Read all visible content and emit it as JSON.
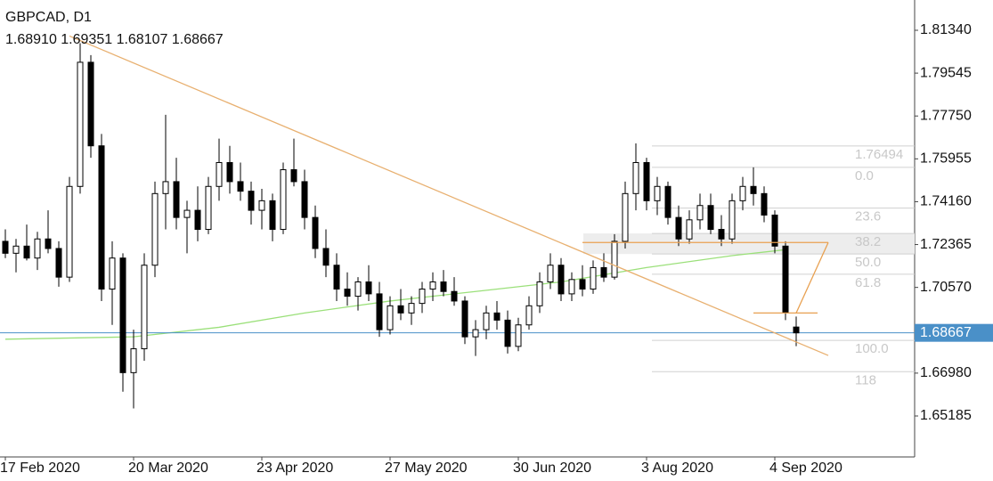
{
  "chart_data": {
    "type": "candlestick",
    "title": "GBPCAD, D1",
    "subtitle": "1.68910 1.69351 1.68107 1.68667",
    "ylim": [
      1.63469,
      1.82608
    ],
    "yticks": [
      {
        "value": 1.8134,
        "label": "1.81340"
      },
      {
        "value": 1.79545,
        "label": "1.79545"
      },
      {
        "value": 1.7775,
        "label": "1.77750"
      },
      {
        "value": 1.75955,
        "label": "1.75955"
      },
      {
        "value": 1.7416,
        "label": "1.74160"
      },
      {
        "value": 1.72365,
        "label": "1.72365"
      },
      {
        "value": 1.7057,
        "label": "1.70570"
      },
      {
        "value": 1.6698,
        "label": "1.66980"
      },
      {
        "value": 1.65185,
        "label": "1.65185"
      }
    ],
    "current_price": {
      "value": 1.68667,
      "label": "1.68667",
      "color": "#4a90c8"
    },
    "categories": [
      "17 Feb 2020",
      null,
      null,
      null,
      null,
      null,
      null,
      null,
      null,
      null,
      null,
      null,
      "20 Mar 2020",
      null,
      null,
      null,
      null,
      null,
      null,
      null,
      null,
      null,
      null,
      null,
      "23 Apr 2020",
      null,
      null,
      null,
      null,
      null,
      null,
      null,
      null,
      null,
      null,
      null,
      "27 May 2020",
      null,
      null,
      null,
      null,
      null,
      null,
      null,
      null,
      null,
      null,
      null,
      "30 Jun 2020",
      null,
      null,
      null,
      null,
      null,
      null,
      null,
      null,
      null,
      null,
      null,
      "3 Aug 2020",
      null,
      null,
      null,
      null,
      null,
      null,
      null,
      null,
      null,
      null,
      null,
      "4 Sep 2020",
      null,
      null
    ],
    "candles": [
      [
        1.725,
        1.73,
        1.718,
        1.72
      ],
      [
        1.72,
        1.726,
        1.712,
        1.723
      ],
      [
        1.723,
        1.732,
        1.717,
        1.718
      ],
      [
        1.718,
        1.729,
        1.713,
        1.726
      ],
      [
        1.726,
        1.738,
        1.72,
        1.722
      ],
      [
        1.722,
        1.725,
        1.706,
        1.71
      ],
      [
        1.71,
        1.752,
        1.708,
        1.748
      ],
      [
        1.748,
        1.808,
        1.745,
        1.8
      ],
      [
        1.8,
        1.803,
        1.76,
        1.765
      ],
      [
        1.765,
        1.77,
        1.7,
        1.705
      ],
      [
        1.705,
        1.725,
        1.69,
        1.718
      ],
      [
        1.718,
        1.72,
        1.662,
        1.67
      ],
      [
        1.67,
        1.688,
        1.655,
        1.68
      ],
      [
        1.68,
        1.72,
        1.675,
        1.715
      ],
      [
        1.715,
        1.75,
        1.71,
        1.745
      ],
      [
        1.745,
        1.778,
        1.73,
        1.75
      ],
      [
        1.75,
        1.76,
        1.73,
        1.735
      ],
      [
        1.735,
        1.742,
        1.72,
        1.738
      ],
      [
        1.738,
        1.748,
        1.725,
        1.73
      ],
      [
        1.73,
        1.752,
        1.728,
        1.748
      ],
      [
        1.748,
        1.768,
        1.742,
        1.758
      ],
      [
        1.758,
        1.765,
        1.745,
        1.75
      ],
      [
        1.75,
        1.758,
        1.742,
        1.746
      ],
      [
        1.746,
        1.75,
        1.732,
        1.738
      ],
      [
        1.738,
        1.747,
        1.73,
        1.742
      ],
      [
        1.742,
        1.745,
        1.725,
        1.73
      ],
      [
        1.73,
        1.758,
        1.728,
        1.755
      ],
      [
        1.755,
        1.768,
        1.748,
        1.75
      ],
      [
        1.75,
        1.755,
        1.73,
        1.735
      ],
      [
        1.735,
        1.74,
        1.718,
        1.722
      ],
      [
        1.722,
        1.73,
        1.71,
        1.715
      ],
      [
        1.715,
        1.72,
        1.7,
        1.705
      ],
      [
        1.705,
        1.712,
        1.698,
        1.702
      ],
      [
        1.702,
        1.71,
        1.696,
        1.708
      ],
      [
        1.708,
        1.715,
        1.7,
        1.703
      ],
      [
        1.703,
        1.708,
        1.685,
        1.688
      ],
      [
        1.688,
        1.702,
        1.686,
        1.698
      ],
      [
        1.698,
        1.705,
        1.692,
        1.695
      ],
      [
        1.695,
        1.702,
        1.69,
        1.699
      ],
      [
        1.699,
        1.708,
        1.695,
        1.705
      ],
      [
        1.705,
        1.712,
        1.7,
        1.708
      ],
      [
        1.708,
        1.713,
        1.702,
        1.704
      ],
      [
        1.704,
        1.71,
        1.698,
        1.7
      ],
      [
        1.7,
        1.702,
        1.682,
        1.685
      ],
      [
        1.685,
        1.692,
        1.677,
        1.688
      ],
      [
        1.688,
        1.698,
        1.684,
        1.695
      ],
      [
        1.695,
        1.7,
        1.688,
        1.692
      ],
      [
        1.692,
        1.696,
        1.678,
        1.681
      ],
      [
        1.681,
        1.693,
        1.679,
        1.69
      ],
      [
        1.69,
        1.702,
        1.688,
        1.698
      ],
      [
        1.698,
        1.712,
        1.695,
        1.708
      ],
      [
        1.708,
        1.72,
        1.705,
        1.715
      ],
      [
        1.715,
        1.718,
        1.7,
        1.703
      ],
      [
        1.703,
        1.712,
        1.7,
        1.709
      ],
      [
        1.709,
        1.715,
        1.702,
        1.705
      ],
      [
        1.705,
        1.717,
        1.703,
        1.714
      ],
      [
        1.714,
        1.72,
        1.708,
        1.71
      ],
      [
        1.71,
        1.728,
        1.709,
        1.725
      ],
      [
        1.725,
        1.75,
        1.722,
        1.745
      ],
      [
        1.745,
        1.766,
        1.738,
        1.758
      ],
      [
        1.758,
        1.76,
        1.738,
        1.742
      ],
      [
        1.742,
        1.752,
        1.736,
        1.748
      ],
      [
        1.748,
        1.75,
        1.732,
        1.735
      ],
      [
        1.735,
        1.74,
        1.723,
        1.726
      ],
      [
        1.726,
        1.738,
        1.724,
        1.734
      ],
      [
        1.734,
        1.745,
        1.73,
        1.74
      ],
      [
        1.74,
        1.745,
        1.728,
        1.73
      ],
      [
        1.73,
        1.736,
        1.723,
        1.726
      ],
      [
        1.726,
        1.745,
        1.724,
        1.742
      ],
      [
        1.742,
        1.752,
        1.738,
        1.748
      ],
      [
        1.748,
        1.756,
        1.74,
        1.745
      ],
      [
        1.745,
        1.748,
        1.733,
        1.736
      ],
      [
        1.736,
        1.738,
        1.72,
        1.723
      ],
      [
        1.723,
        1.725,
        1.692,
        1.695
      ],
      [
        1.6891,
        1.69351,
        1.68107,
        1.68667
      ]
    ],
    "moving_average": {
      "color": "#9be07a",
      "points": [
        [
          0,
          1.684
        ],
        [
          12,
          1.685
        ],
        [
          20,
          1.689
        ],
        [
          28,
          1.695
        ],
        [
          36,
          1.7
        ],
        [
          44,
          1.704
        ],
        [
          52,
          1.708
        ],
        [
          60,
          1.714
        ],
        [
          68,
          1.719
        ],
        [
          73,
          1.7215
        ]
      ]
    },
    "trendlines": [
      {
        "color": "#e8b070",
        "points": [
          [
            6,
            1.811
          ],
          [
            77,
            1.6772
          ]
        ]
      },
      {
        "color": "#e8a050",
        "points": [
          [
            54,
            1.7245
          ],
          [
            77,
            1.7245
          ]
        ]
      },
      {
        "color": "#e8a050",
        "points": [
          [
            70,
            1.695
          ],
          [
            76,
            1.695
          ]
        ]
      },
      {
        "color": "#e8a050",
        "points": [
          [
            74,
            1.695
          ],
          [
            77,
            1.7245
          ]
        ]
      }
    ],
    "fib_band": [
      1.7283,
      1.7197
    ],
    "fib_levels": [
      {
        "value": 1.76494,
        "label": "1.76494"
      },
      {
        "value": 1.756,
        "label": "0.0"
      },
      {
        "value": 1.7389,
        "label": "23.6"
      },
      {
        "value": 1.7283,
        "label": "38.2"
      },
      {
        "value": 1.7197,
        "label": "50.0"
      },
      {
        "value": 1.7112,
        "label": "61.8"
      },
      {
        "value": 1.6835,
        "label": "100.0"
      },
      {
        "value": 1.6704,
        "label": "118"
      }
    ]
  }
}
